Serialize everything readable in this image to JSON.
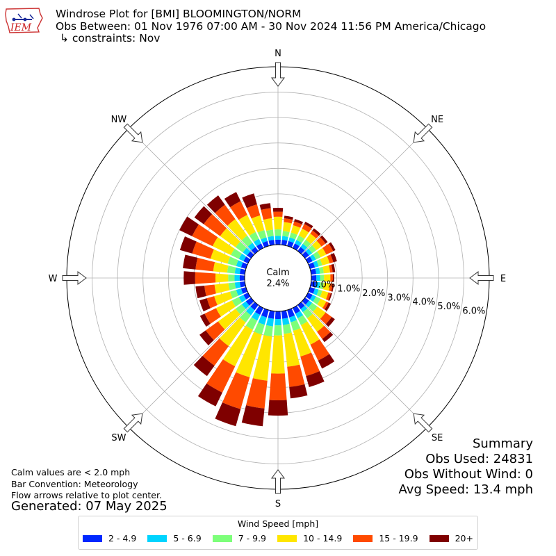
{
  "header": {
    "line1": "Windrose Plot for [BMI] BLOOMINGTON/NORM",
    "line2": "Obs Between: 01 Nov 1976 07:00 AM - 30 Nov 2024 11:56 PM America/Chicago",
    "line3": "↳ constraints: Nov"
  },
  "logo": {
    "text": "IEM",
    "color": "#cc2222"
  },
  "notes": {
    "line1": "Calm values are < 2.0 mph",
    "line2": "Bar Convention: Meteorology",
    "line3": "Flow arrows relative to plot center.",
    "generated": "Generated: 07 May 2025"
  },
  "summary": {
    "title": "Summary",
    "obs_used": "Obs Used: 24831",
    "obs_without_wind": "Obs Without Wind: 0",
    "avg_speed": "Avg Speed: 13.4 mph"
  },
  "legend": {
    "title": "Wind Speed [mph]",
    "items": [
      {
        "label": "2 - 4.9",
        "color": "#0028ff"
      },
      {
        "label": "5 - 6.9",
        "color": "#00d4ff"
      },
      {
        "label": "7 - 9.9",
        "color": "#7dff7a"
      },
      {
        "label": "10 - 14.9",
        "color": "#ffe600"
      },
      {
        "label": "15 - 19.9",
        "color": "#ff4a00"
      },
      {
        "label": "20+",
        "color": "#7f0000"
      }
    ]
  },
  "chart_data": {
    "type": "windrose",
    "calm": {
      "label": "Calm",
      "value": "2.4%"
    },
    "radial_max": 7.0,
    "radial_ticks": [
      0.0,
      1.0,
      2.0,
      3.0,
      4.0,
      5.0,
      6.0
    ],
    "radial_tick_labels": [
      "0.0%",
      "1.0%",
      "2.0%",
      "3.0%",
      "4.0%",
      "5.0%",
      "6.0%"
    ],
    "compass": [
      "N",
      "NE",
      "E",
      "SE",
      "S",
      "SW",
      "W",
      "NW"
    ],
    "directions_deg": [
      0,
      10,
      20,
      30,
      40,
      50,
      60,
      70,
      80,
      90,
      100,
      110,
      120,
      130,
      140,
      150,
      160,
      170,
      180,
      190,
      200,
      210,
      220,
      230,
      240,
      250,
      260,
      270,
      280,
      290,
      300,
      310,
      320,
      330,
      340,
      350
    ],
    "bins": [
      "2 - 4.9",
      "5 - 6.9",
      "7 - 9.9",
      "10 - 14.9",
      "15 - 19.9",
      "20+"
    ],
    "cumulative": [
      [
        0.2,
        0.35,
        0.6,
        1.1,
        1.3,
        1.45
      ],
      [
        0.2,
        0.35,
        0.55,
        0.9,
        1.05,
        1.15
      ],
      [
        0.2,
        0.35,
        0.55,
        0.85,
        1.0,
        1.1
      ],
      [
        0.2,
        0.35,
        0.55,
        0.85,
        1.05,
        1.15
      ],
      [
        0.2,
        0.35,
        0.55,
        0.85,
        1.0,
        1.1
      ],
      [
        0.2,
        0.35,
        0.55,
        0.8,
        1.0,
        1.1
      ],
      [
        0.2,
        0.35,
        0.55,
        0.8,
        1.1,
        1.2
      ],
      [
        0.2,
        0.35,
        0.5,
        0.8,
        0.95,
        1.1
      ],
      [
        0.2,
        0.35,
        0.5,
        0.75,
        0.85,
        0.95
      ],
      [
        0.2,
        0.35,
        0.5,
        0.75,
        0.85,
        0.9
      ],
      [
        0.2,
        0.35,
        0.5,
        0.75,
        0.85,
        0.9
      ],
      [
        0.2,
        0.35,
        0.5,
        0.75,
        0.85,
        0.9
      ],
      [
        0.2,
        0.35,
        0.55,
        0.8,
        0.9,
        1.0
      ],
      [
        0.2,
        0.35,
        0.6,
        1.0,
        1.3,
        1.45
      ],
      [
        0.2,
        0.35,
        0.65,
        1.3,
        1.65,
        1.8
      ],
      [
        0.25,
        0.45,
        0.75,
        1.6,
        2.3,
        2.65
      ],
      [
        0.3,
        0.5,
        0.85,
        1.9,
        2.7,
        3.15
      ],
      [
        0.3,
        0.55,
        0.9,
        2.2,
        3.0,
        3.45
      ],
      [
        0.3,
        0.55,
        0.95,
        2.45,
        3.5,
        4.1
      ],
      [
        0.3,
        0.6,
        1.0,
        2.75,
        3.85,
        4.55
      ],
      [
        0.3,
        0.6,
        1.0,
        2.75,
        4.05,
        4.75
      ],
      [
        0.3,
        0.55,
        0.95,
        2.55,
        3.7,
        4.3
      ],
      [
        0.25,
        0.5,
        0.85,
        2.0,
        2.95,
        3.45
      ],
      [
        0.25,
        0.45,
        0.75,
        1.6,
        2.2,
        2.5
      ],
      [
        0.2,
        0.4,
        0.7,
        1.4,
        1.9,
        2.1
      ],
      [
        0.2,
        0.4,
        0.65,
        1.3,
        1.6,
        1.9
      ],
      [
        0.2,
        0.4,
        0.65,
        1.2,
        1.6,
        1.95
      ],
      [
        0.2,
        0.4,
        0.65,
        1.15,
        1.95,
        2.4
      ],
      [
        0.2,
        0.4,
        0.7,
        1.25,
        1.95,
        2.45
      ],
      [
        0.2,
        0.4,
        0.75,
        1.45,
        2.2,
        2.7
      ],
      [
        0.2,
        0.4,
        0.75,
        1.55,
        2.45,
        3.0
      ],
      [
        0.2,
        0.4,
        0.75,
        1.5,
        2.3,
        2.75
      ],
      [
        0.2,
        0.4,
        0.75,
        1.55,
        2.25,
        2.7
      ],
      [
        0.2,
        0.4,
        0.7,
        1.45,
        2.05,
        2.45
      ],
      [
        0.2,
        0.35,
        0.65,
        1.25,
        1.7,
        2.15
      ],
      [
        0.2,
        0.35,
        0.6,
        1.05,
        1.45,
        1.65
      ]
    ]
  }
}
